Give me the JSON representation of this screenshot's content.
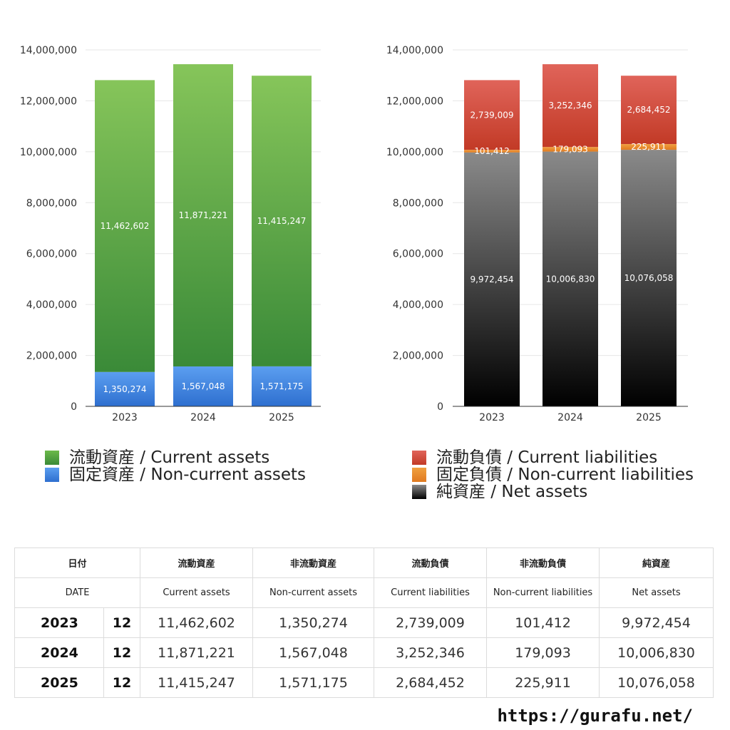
{
  "chart_data": [
    {
      "type": "bar",
      "stacked": true,
      "categories": [
        "2023",
        "2024",
        "2025"
      ],
      "ylim": [
        0,
        14000000
      ],
      "yticks": [
        "0",
        "2,000,000",
        "4,000,000",
        "6,000,000",
        "8,000,000",
        "10,000,000",
        "12,000,000",
        "14,000,000"
      ],
      "ytick_values": [
        0,
        2000000,
        4000000,
        6000000,
        8000000,
        10000000,
        12000000,
        14000000
      ],
      "grid": true,
      "series": [
        {
          "name": "固定資産 / Non-current assets",
          "values": [
            1350274,
            1567048,
            1571175
          ],
          "labels": [
            "1,350,274",
            "1,567,048",
            "1,571,175"
          ],
          "color_top": "#5b9ef0",
          "color_bottom": "#2e6fcf"
        },
        {
          "name": "流動資産 / Current assets",
          "values": [
            11462602,
            11871221,
            11415247
          ],
          "labels": [
            "11,462,602",
            "11,871,221",
            "11,415,247"
          ],
          "color_top": "#86c55a",
          "color_bottom": "#3a8a38"
        }
      ]
    },
    {
      "type": "bar",
      "stacked": true,
      "categories": [
        "2023",
        "2024",
        "2025"
      ],
      "ylim": [
        0,
        14000000
      ],
      "yticks": [
        "0",
        "2,000,000",
        "4,000,000",
        "6,000,000",
        "8,000,000",
        "10,000,000",
        "12,000,000",
        "14,000,000"
      ],
      "ytick_values": [
        0,
        2000000,
        4000000,
        6000000,
        8000000,
        10000000,
        12000000,
        14000000
      ],
      "grid": true,
      "series": [
        {
          "name": "純資産 / Net assets",
          "values": [
            9972454,
            10006830,
            10076058
          ],
          "labels": [
            "9,972,454",
            "10,006,830",
            "10,076,058"
          ],
          "color_top": "#8a8a8a",
          "color_bottom": "#000000"
        },
        {
          "name": "固定負債 / Non-current liabilities",
          "values": [
            101412,
            179093,
            225911
          ],
          "labels": [
            "101,412",
            "179,093",
            "225,911"
          ],
          "color_top": "#f0a040",
          "color_bottom": "#e07a20"
        },
        {
          "name": "流動負債 / Current liabilities",
          "values": [
            2739009,
            3252346,
            2684452
          ],
          "labels": [
            "2,739,009",
            "3,252,346",
            "2,684,452"
          ],
          "color_top": "#e0645a",
          "color_bottom": "#c23a26"
        }
      ]
    }
  ],
  "legends": {
    "left": [
      {
        "label": "流動資産 / Current assets",
        "color": "#4aa03c"
      },
      {
        "label": "固定資産 / Non-current assets",
        "color": "#3a7fdc"
      }
    ],
    "right": [
      {
        "label": "流動負債 / Current liabilities",
        "color": "#d0443a"
      },
      {
        "label": "固定負債 / Non-current liabilities",
        "color": "#e8892e"
      },
      {
        "label": "純資産 / Net assets",
        "color": "#333333"
      }
    ]
  },
  "table": {
    "header_jp": {
      "date": "日付",
      "current_assets": "流動資産",
      "noncurrent_assets": "非流動資産",
      "current_liabilities": "流動負債",
      "noncurrent_liabilities": "非流動負債",
      "net_assets": "純資産"
    },
    "header_en": {
      "date": "DATE",
      "current_assets": "Current assets",
      "noncurrent_assets": "Non-current assets",
      "current_liabilities": "Current liabilities",
      "noncurrent_liabilities": "Non-current liabilities",
      "net_assets": "Net assets"
    },
    "rows": [
      {
        "year": "2023",
        "month": "12",
        "current_assets": "11,462,602",
        "noncurrent_assets": "1,350,274",
        "current_liabilities": "2,739,009",
        "noncurrent_liabilities": "101,412",
        "net_assets": "9,972,454"
      },
      {
        "year": "2024",
        "month": "12",
        "current_assets": "11,871,221",
        "noncurrent_assets": "1,567,048",
        "current_liabilities": "3,252,346",
        "noncurrent_liabilities": "179,093",
        "net_assets": "10,006,830"
      },
      {
        "year": "2025",
        "month": "12",
        "current_assets": "11,415,247",
        "noncurrent_assets": "1,571,175",
        "current_liabilities": "2,684,452",
        "noncurrent_liabilities": "225,911",
        "net_assets": "10,076,058"
      }
    ]
  },
  "watermark": "https://gurafu.net/"
}
